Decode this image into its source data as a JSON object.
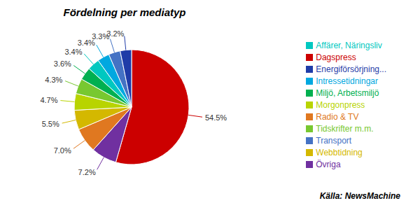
{
  "chart_data": {
    "type": "pie",
    "title": "Fördelning per mediatyp",
    "categories": [
      "Dagspress",
      "Övriga",
      "Radio & TV",
      "Webbtidning",
      "Morgonpress",
      "Tidskrifter m.m.",
      "Miljö, Arbetsmiljö",
      "Affärer, Näringsliv",
      "Intressetidningar",
      "Transport",
      "Energiförsörjning..."
    ],
    "values": [
      54.5,
      7.2,
      7.0,
      5.5,
      4.7,
      4.3,
      3.6,
      3.4,
      3.4,
      3.3,
      3.2
    ],
    "value_labels": [
      "54.5%",
      "7.2%",
      "7.0%",
      "5.5%",
      "4.7%",
      "4.3%",
      "3.6%",
      "3.4%",
      "3.4%",
      "3.3%",
      "3.2%"
    ],
    "colors": [
      "#cc0000",
      "#7030a0",
      "#e07820",
      "#d4b800",
      "#b8d400",
      "#78c830",
      "#00b050",
      "#00c8c0",
      "#00a8e0",
      "#4472c4",
      "#1f3ca8"
    ],
    "data_labels": true,
    "legend": "right",
    "annotations": [
      "Källa: NewsMachine"
    ]
  }
}
